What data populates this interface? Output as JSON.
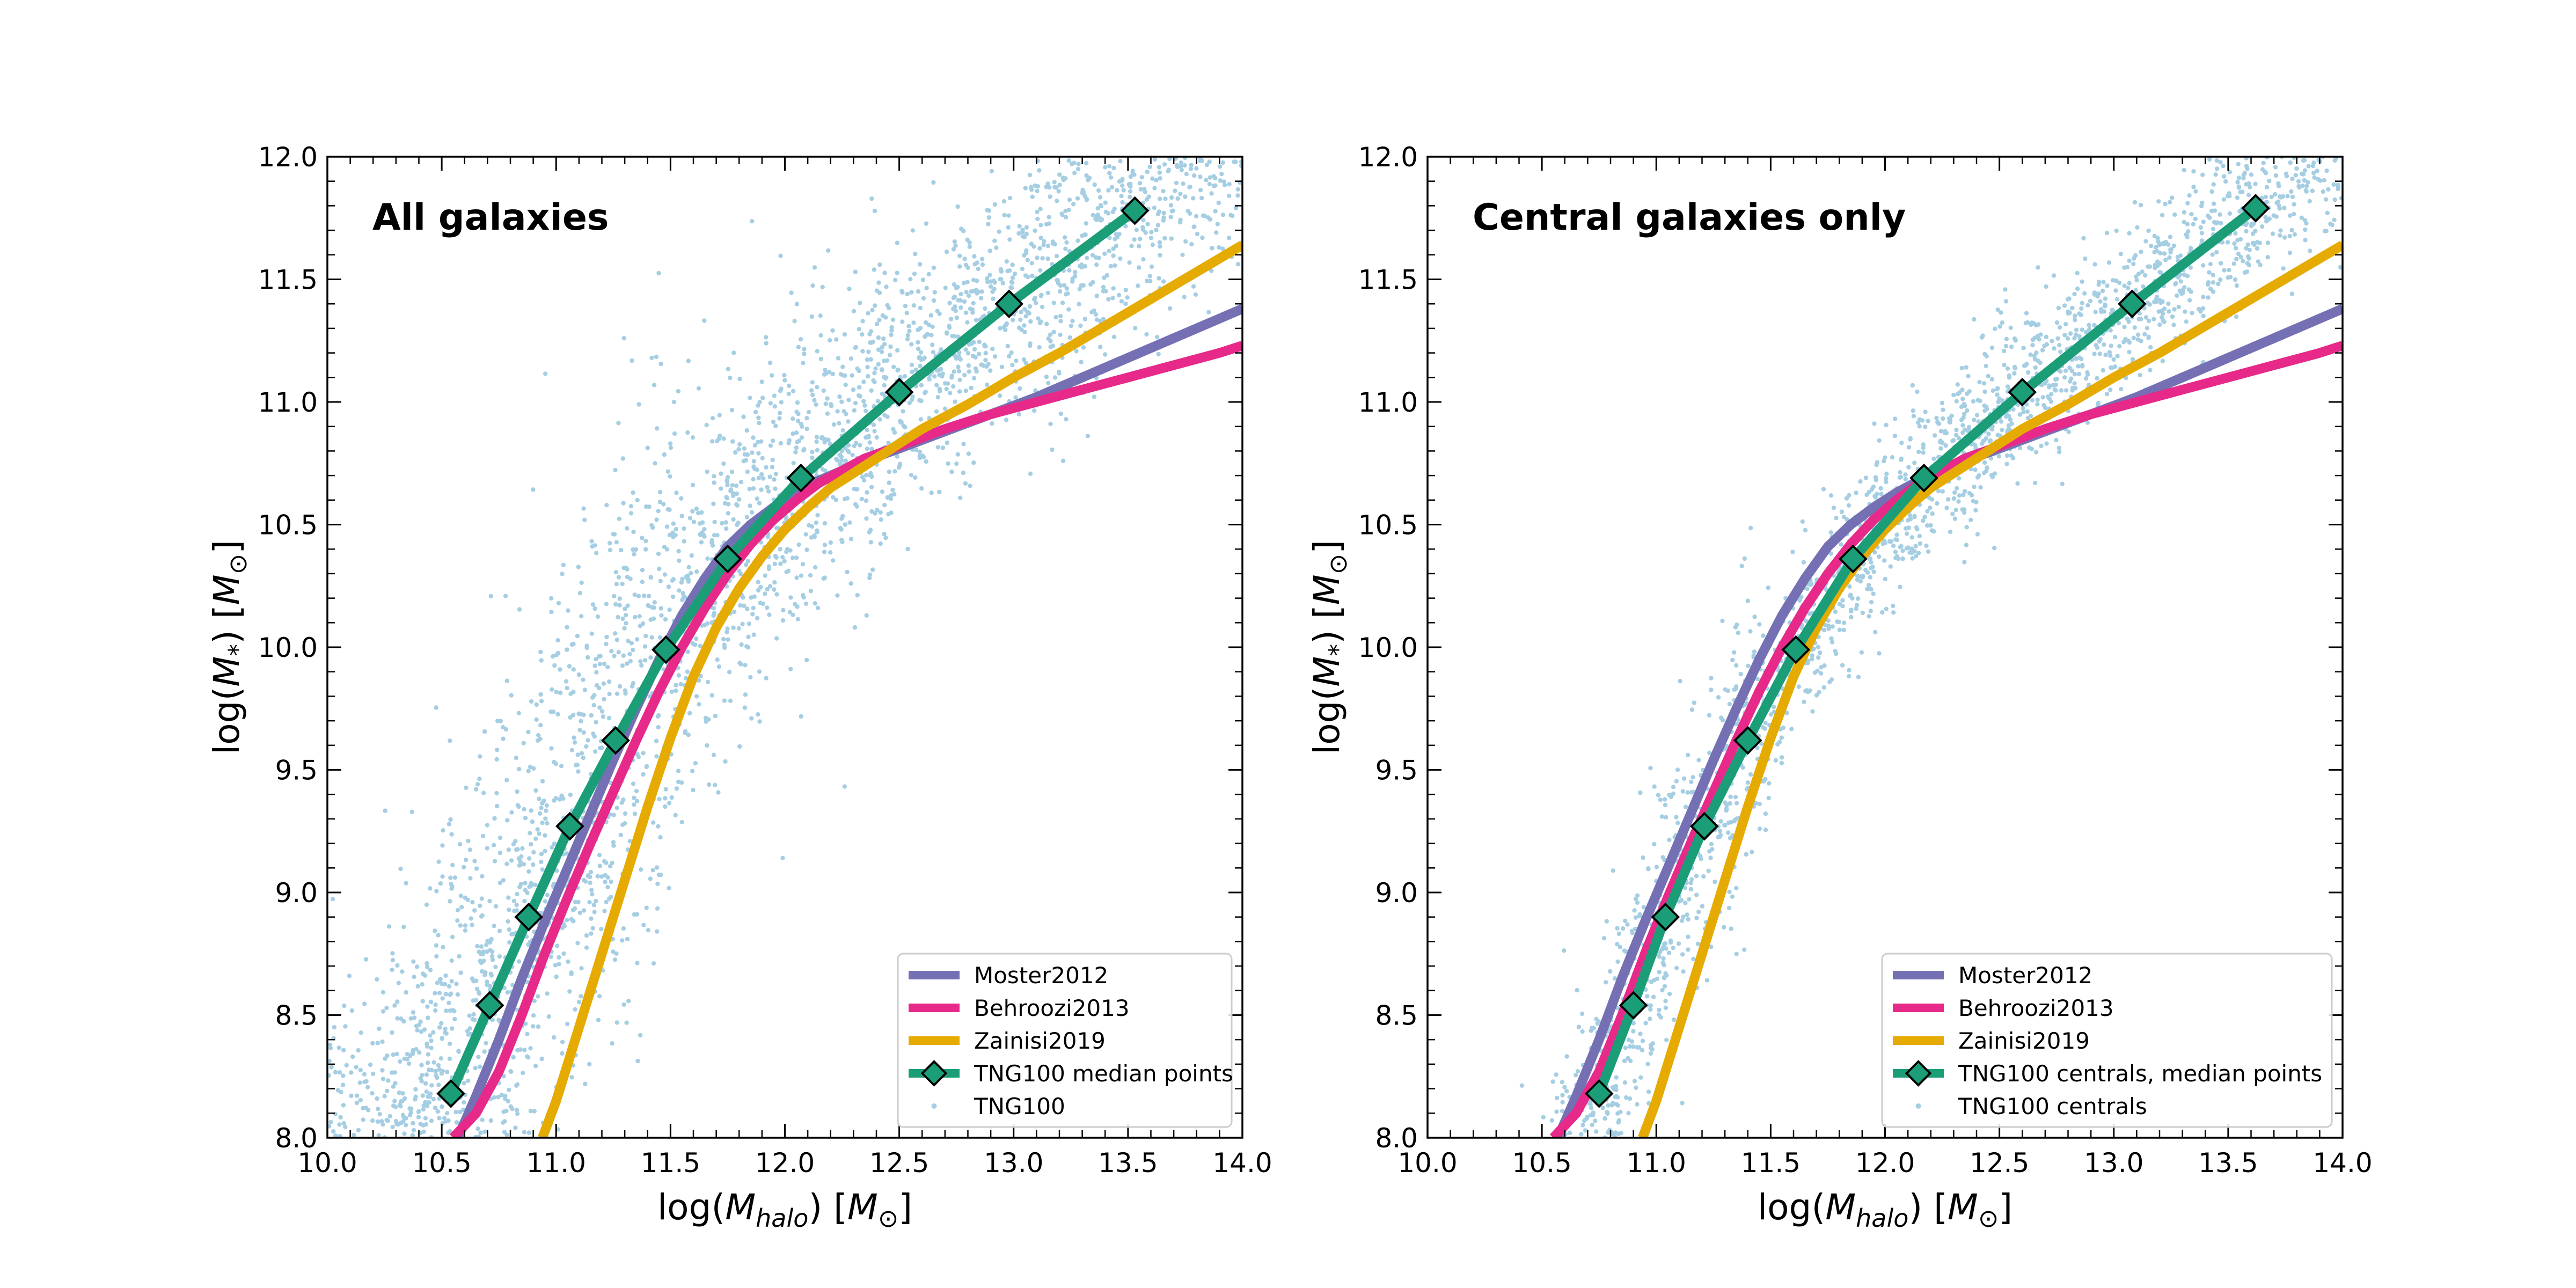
{
  "chart_data": [
    {
      "type": "scatter",
      "panel_title": "All galaxies",
      "xlabel": "log(M_halo) [M_⊙]",
      "ylabel": "log(M_*) [M_⊙]",
      "xlim": [
        10.0,
        14.0
      ],
      "ylim": [
        8.0,
        12.0
      ],
      "x_ticks": [
        "10.0",
        "10.5",
        "11.0",
        "11.5",
        "12.0",
        "12.5",
        "13.0",
        "13.5",
        "14.0"
      ],
      "y_ticks": [
        "8.0",
        "8.5",
        "9.0",
        "9.5",
        "10.0",
        "10.5",
        "11.0",
        "11.5",
        "12.0"
      ],
      "legend_placement": "lower-right",
      "series": [
        {
          "name": "Moster2012",
          "kind": "line",
          "color": "#7570b3",
          "x": [
            10.57,
            10.65,
            10.75,
            10.85,
            10.95,
            11.05,
            11.15,
            11.25,
            11.35,
            11.45,
            11.55,
            11.65,
            11.75,
            11.85,
            11.95,
            12.05,
            12.15,
            12.25,
            12.35,
            12.5,
            12.7,
            12.9,
            13.1,
            13.3,
            13.5,
            13.7,
            13.9,
            14.0
          ],
          "y": [
            8.0,
            8.17,
            8.4,
            8.65,
            8.88,
            9.1,
            9.32,
            9.54,
            9.75,
            9.95,
            10.13,
            10.28,
            10.41,
            10.5,
            10.57,
            10.63,
            10.68,
            10.72,
            10.76,
            10.81,
            10.88,
            10.95,
            11.02,
            11.1,
            11.18,
            11.26,
            11.34,
            11.38
          ]
        },
        {
          "name": "Behroozi2013",
          "kind": "line",
          "color": "#e7298a",
          "x": [
            10.55,
            10.65,
            10.75,
            10.85,
            10.95,
            11.05,
            11.15,
            11.25,
            11.35,
            11.45,
            11.55,
            11.65,
            11.75,
            11.85,
            11.95,
            12.05,
            12.15,
            12.25,
            12.35,
            12.5,
            12.7,
            12.9,
            13.1,
            13.3,
            13.5,
            13.7,
            13.9,
            14.0
          ],
          "y": [
            8.0,
            8.1,
            8.27,
            8.5,
            8.75,
            8.98,
            9.2,
            9.41,
            9.62,
            9.82,
            10.0,
            10.16,
            10.3,
            10.42,
            10.52,
            10.6,
            10.67,
            10.72,
            10.77,
            10.82,
            10.89,
            10.95,
            11.0,
            11.05,
            11.1,
            11.15,
            11.2,
            11.23
          ]
        },
        {
          "name": "Zainisi2019",
          "kind": "line",
          "color": "#e6ab02",
          "x": [
            10.94,
            11.0,
            11.1,
            11.2,
            11.3,
            11.4,
            11.5,
            11.6,
            11.7,
            11.8,
            11.9,
            12.0,
            12.1,
            12.2,
            12.3,
            12.4,
            12.5,
            12.6,
            12.8,
            13.0,
            13.2,
            13.4,
            13.6,
            13.8,
            14.0
          ],
          "y": [
            8.0,
            8.15,
            8.45,
            8.75,
            9.05,
            9.35,
            9.63,
            9.88,
            10.08,
            10.24,
            10.37,
            10.48,
            10.57,
            10.65,
            10.71,
            10.77,
            10.83,
            10.89,
            10.99,
            11.1,
            11.2,
            11.31,
            11.42,
            11.53,
            11.64
          ]
        },
        {
          "name": "TNG100 median points",
          "kind": "line+diamond",
          "color": "#1b9e77",
          "x": [
            10.54,
            10.71,
            10.88,
            11.06,
            11.26,
            11.48,
            11.75,
            12.07,
            12.5,
            12.98,
            13.53
          ],
          "y": [
            8.18,
            8.54,
            8.9,
            9.27,
            9.62,
            9.99,
            10.36,
            10.69,
            11.04,
            11.4,
            11.78
          ]
        },
        {
          "name": "TNG100",
          "kind": "points",
          "color": "#a6cee3",
          "spread_dex": 0.6
        }
      ]
    },
    {
      "type": "scatter",
      "panel_title": "Central galaxies only",
      "xlabel": "log(M_halo) [M_⊙]",
      "ylabel": "log(M_*) [M_⊙]",
      "xlim": [
        10.0,
        14.0
      ],
      "ylim": [
        8.0,
        12.0
      ],
      "x_ticks": [
        "10.0",
        "10.5",
        "11.0",
        "11.5",
        "12.0",
        "12.5",
        "13.0",
        "13.5",
        "14.0"
      ],
      "y_ticks": [
        "8.0",
        "8.5",
        "9.0",
        "9.5",
        "10.0",
        "10.5",
        "11.0",
        "11.5",
        "12.0"
      ],
      "legend_placement": "lower-right",
      "series": [
        {
          "name": "Moster2012",
          "kind": "line",
          "color": "#7570b3",
          "x": [
            10.57,
            10.65,
            10.75,
            10.85,
            10.95,
            11.05,
            11.15,
            11.25,
            11.35,
            11.45,
            11.55,
            11.65,
            11.75,
            11.85,
            11.95,
            12.05,
            12.15,
            12.25,
            12.35,
            12.5,
            12.7,
            12.9,
            13.1,
            13.3,
            13.5,
            13.7,
            13.9,
            14.0
          ],
          "y": [
            8.0,
            8.17,
            8.4,
            8.65,
            8.88,
            9.1,
            9.32,
            9.54,
            9.75,
            9.95,
            10.13,
            10.28,
            10.41,
            10.5,
            10.57,
            10.63,
            10.68,
            10.72,
            10.76,
            10.81,
            10.88,
            10.95,
            11.02,
            11.1,
            11.18,
            11.26,
            11.34,
            11.38
          ]
        },
        {
          "name": "Behroozi2013",
          "kind": "line",
          "color": "#e7298a",
          "x": [
            10.55,
            10.65,
            10.75,
            10.85,
            10.95,
            11.05,
            11.15,
            11.25,
            11.35,
            11.45,
            11.55,
            11.65,
            11.75,
            11.85,
            11.95,
            12.05,
            12.15,
            12.25,
            12.35,
            12.5,
            12.7,
            12.9,
            13.1,
            13.3,
            13.5,
            13.7,
            13.9,
            14.0
          ],
          "y": [
            8.0,
            8.1,
            8.27,
            8.5,
            8.75,
            8.98,
            9.2,
            9.41,
            9.62,
            9.82,
            10.0,
            10.16,
            10.3,
            10.42,
            10.52,
            10.6,
            10.67,
            10.72,
            10.77,
            10.82,
            10.89,
            10.95,
            11.0,
            11.05,
            11.1,
            11.15,
            11.2,
            11.23
          ]
        },
        {
          "name": "Zainisi2019",
          "kind": "line",
          "color": "#e6ab02",
          "x": [
            10.94,
            11.0,
            11.1,
            11.2,
            11.3,
            11.4,
            11.5,
            11.6,
            11.7,
            11.8,
            11.9,
            12.0,
            12.1,
            12.2,
            12.3,
            12.4,
            12.5,
            12.6,
            12.8,
            13.0,
            13.2,
            13.4,
            13.6,
            13.8,
            14.0
          ],
          "y": [
            8.0,
            8.15,
            8.45,
            8.75,
            9.05,
            9.35,
            9.63,
            9.88,
            10.08,
            10.24,
            10.37,
            10.48,
            10.57,
            10.65,
            10.71,
            10.77,
            10.83,
            10.89,
            10.99,
            11.1,
            11.2,
            11.31,
            11.42,
            11.53,
            11.64
          ]
        },
        {
          "name": "TNG100 centrals, median points",
          "kind": "line+diamond",
          "color": "#1b9e77",
          "x": [
            10.75,
            10.9,
            11.04,
            11.21,
            11.4,
            11.61,
            11.86,
            12.17,
            12.6,
            13.08,
            13.62
          ],
          "y": [
            8.18,
            8.54,
            8.9,
            9.27,
            9.62,
            9.99,
            10.36,
            10.69,
            11.04,
            11.4,
            11.79
          ]
        },
        {
          "name": "TNG100 centrals",
          "kind": "points",
          "color": "#a6cee3",
          "spread_dex": 0.25
        }
      ]
    }
  ]
}
